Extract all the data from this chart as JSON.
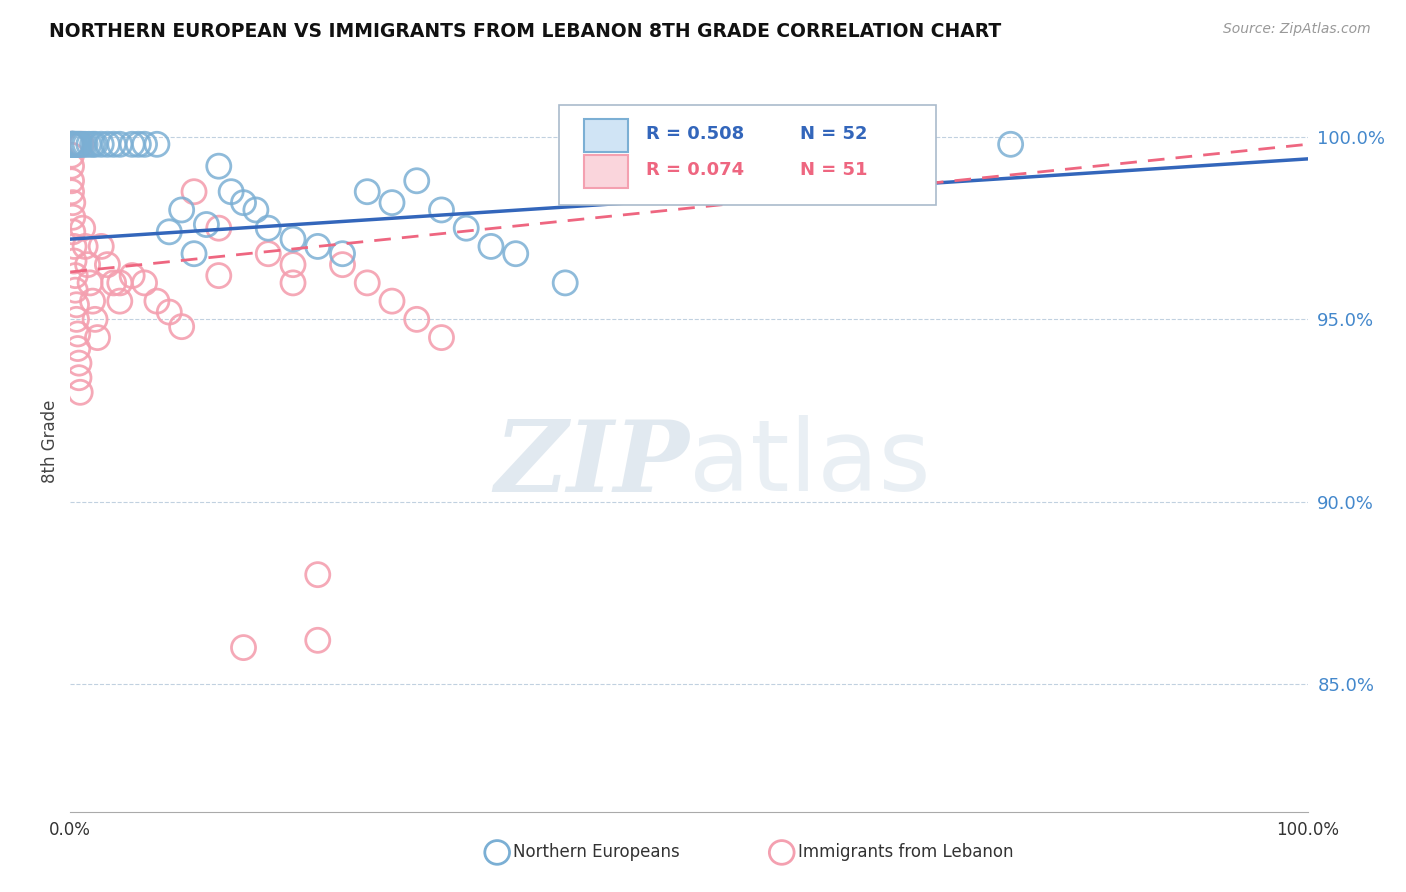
{
  "title": "NORTHERN EUROPEAN VS IMMIGRANTS FROM LEBANON 8TH GRADE CORRELATION CHART",
  "source": "Source: ZipAtlas.com",
  "ylabel": "8th Grade",
  "blue_R": 0.508,
  "blue_N": 52,
  "pink_R": 0.074,
  "pink_N": 51,
  "blue_color": "#7BAFD4",
  "pink_color": "#F4A0B0",
  "blue_line_color": "#3366BB",
  "pink_line_color": "#EE6680",
  "watermark_zip": "ZIP",
  "watermark_atlas": "atlas",
  "legend_blue": "Northern Europeans",
  "legend_pink": "Immigrants from Lebanon",
  "xlim": [
    0.0,
    1.0
  ],
  "ylim": [
    0.815,
    1.018
  ],
  "yticks": [
    0.85,
    0.9,
    0.95,
    1.0
  ],
  "ytick_labels": [
    "85.0%",
    "90.0%",
    "95.0%",
    "100.0%"
  ],
  "blue_trend_x0": 0.0,
  "blue_trend_x1": 1.0,
  "blue_trend_y0": 0.972,
  "blue_trend_y1": 0.994,
  "pink_trend_x0": 0.0,
  "pink_trend_x1": 1.0,
  "pink_trend_y0": 0.963,
  "pink_trend_y1": 0.998,
  "blue_scatter_x": [
    0.001,
    0.001,
    0.001,
    0.002,
    0.002,
    0.002,
    0.003,
    0.003,
    0.004,
    0.005,
    0.006,
    0.007,
    0.008,
    0.01,
    0.012,
    0.015,
    0.018,
    0.02,
    0.025,
    0.03,
    0.035,
    0.04,
    0.05,
    0.055,
    0.06,
    0.07,
    0.08,
    0.09,
    0.1,
    0.11,
    0.12,
    0.13,
    0.14,
    0.15,
    0.16,
    0.18,
    0.2,
    0.22,
    0.24,
    0.26,
    0.28,
    0.3,
    0.32,
    0.34,
    0.36,
    0.4,
    0.42,
    0.44,
    0.46,
    0.48,
    0.66,
    0.76
  ],
  "blue_scatter_y": [
    0.998,
    0.998,
    0.998,
    0.998,
    0.998,
    0.998,
    0.998,
    0.998,
    0.998,
    0.998,
    0.998,
    0.998,
    0.998,
    0.998,
    0.998,
    0.998,
    0.998,
    0.998,
    0.998,
    0.998,
    0.998,
    0.998,
    0.998,
    0.998,
    0.998,
    0.998,
    0.974,
    0.98,
    0.968,
    0.976,
    0.992,
    0.985,
    0.982,
    0.98,
    0.975,
    0.972,
    0.97,
    0.968,
    0.985,
    0.982,
    0.988,
    0.98,
    0.975,
    0.97,
    0.968,
    0.96,
    0.998,
    0.998,
    0.998,
    0.998,
    0.998,
    0.998
  ],
  "pink_scatter_x": [
    0.001,
    0.001,
    0.001,
    0.001,
    0.001,
    0.002,
    0.002,
    0.002,
    0.003,
    0.003,
    0.004,
    0.004,
    0.005,
    0.005,
    0.006,
    0.006,
    0.007,
    0.007,
    0.008,
    0.009,
    0.01,
    0.012,
    0.014,
    0.016,
    0.018,
    0.02,
    0.022,
    0.025,
    0.03,
    0.035,
    0.04,
    0.05,
    0.06,
    0.07,
    0.08,
    0.09,
    0.1,
    0.12,
    0.14,
    0.16,
    0.18,
    0.2,
    0.22,
    0.24,
    0.26,
    0.28,
    0.3,
    0.04,
    0.12,
    0.18,
    0.2
  ],
  "pink_scatter_y": [
    0.998,
    0.995,
    0.992,
    0.988,
    0.985,
    0.982,
    0.978,
    0.974,
    0.97,
    0.966,
    0.962,
    0.958,
    0.954,
    0.95,
    0.946,
    0.942,
    0.938,
    0.934,
    0.93,
    0.998,
    0.975,
    0.97,
    0.965,
    0.96,
    0.955,
    0.95,
    0.945,
    0.97,
    0.965,
    0.96,
    0.955,
    0.962,
    0.96,
    0.955,
    0.952,
    0.948,
    0.985,
    0.975,
    0.86,
    0.968,
    0.965,
    0.862,
    0.965,
    0.96,
    0.955,
    0.95,
    0.945,
    0.96,
    0.962,
    0.96,
    0.88
  ]
}
